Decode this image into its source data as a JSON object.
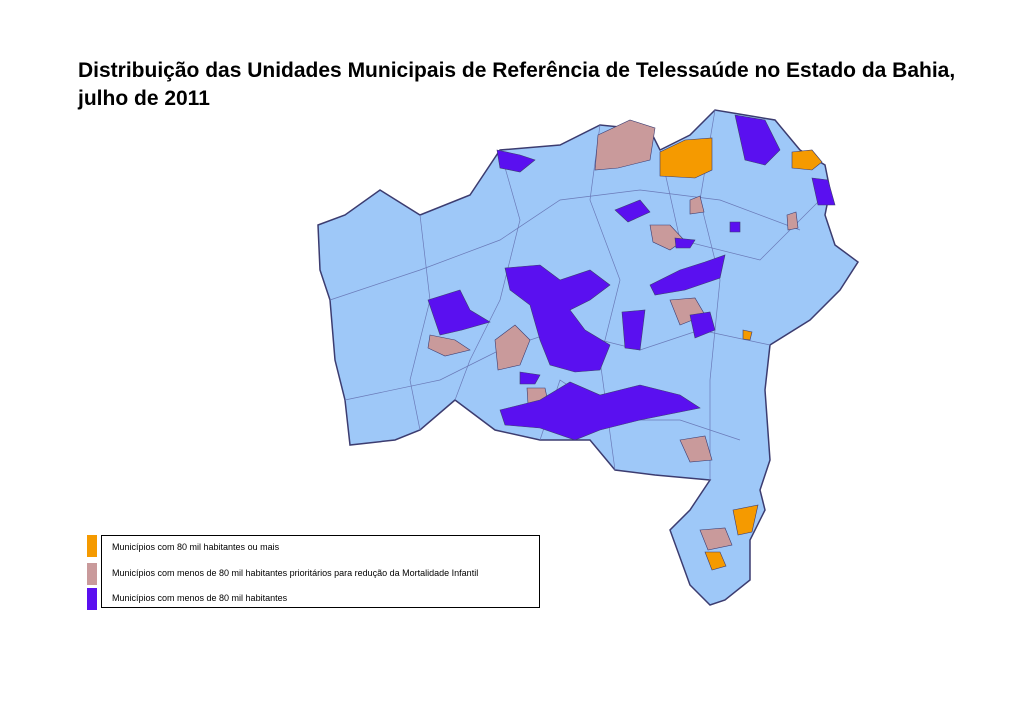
{
  "title": "Distribuição das Unidades Municipais de Referência de Telessaúde no Estado da Bahia, julho de 2011",
  "legend": [
    {
      "label": "Municípios com 80 mil habitantes ou mais",
      "color": "#f59a00"
    },
    {
      "label": "Municípios com menos de 80 mil habitantes prioritários para redução da Mortalidade Infantil",
      "color": "#c99a9b"
    },
    {
      "label": "Municípios com menos de 80 mil habitantes",
      "color": "#5a10f0"
    }
  ]
}
